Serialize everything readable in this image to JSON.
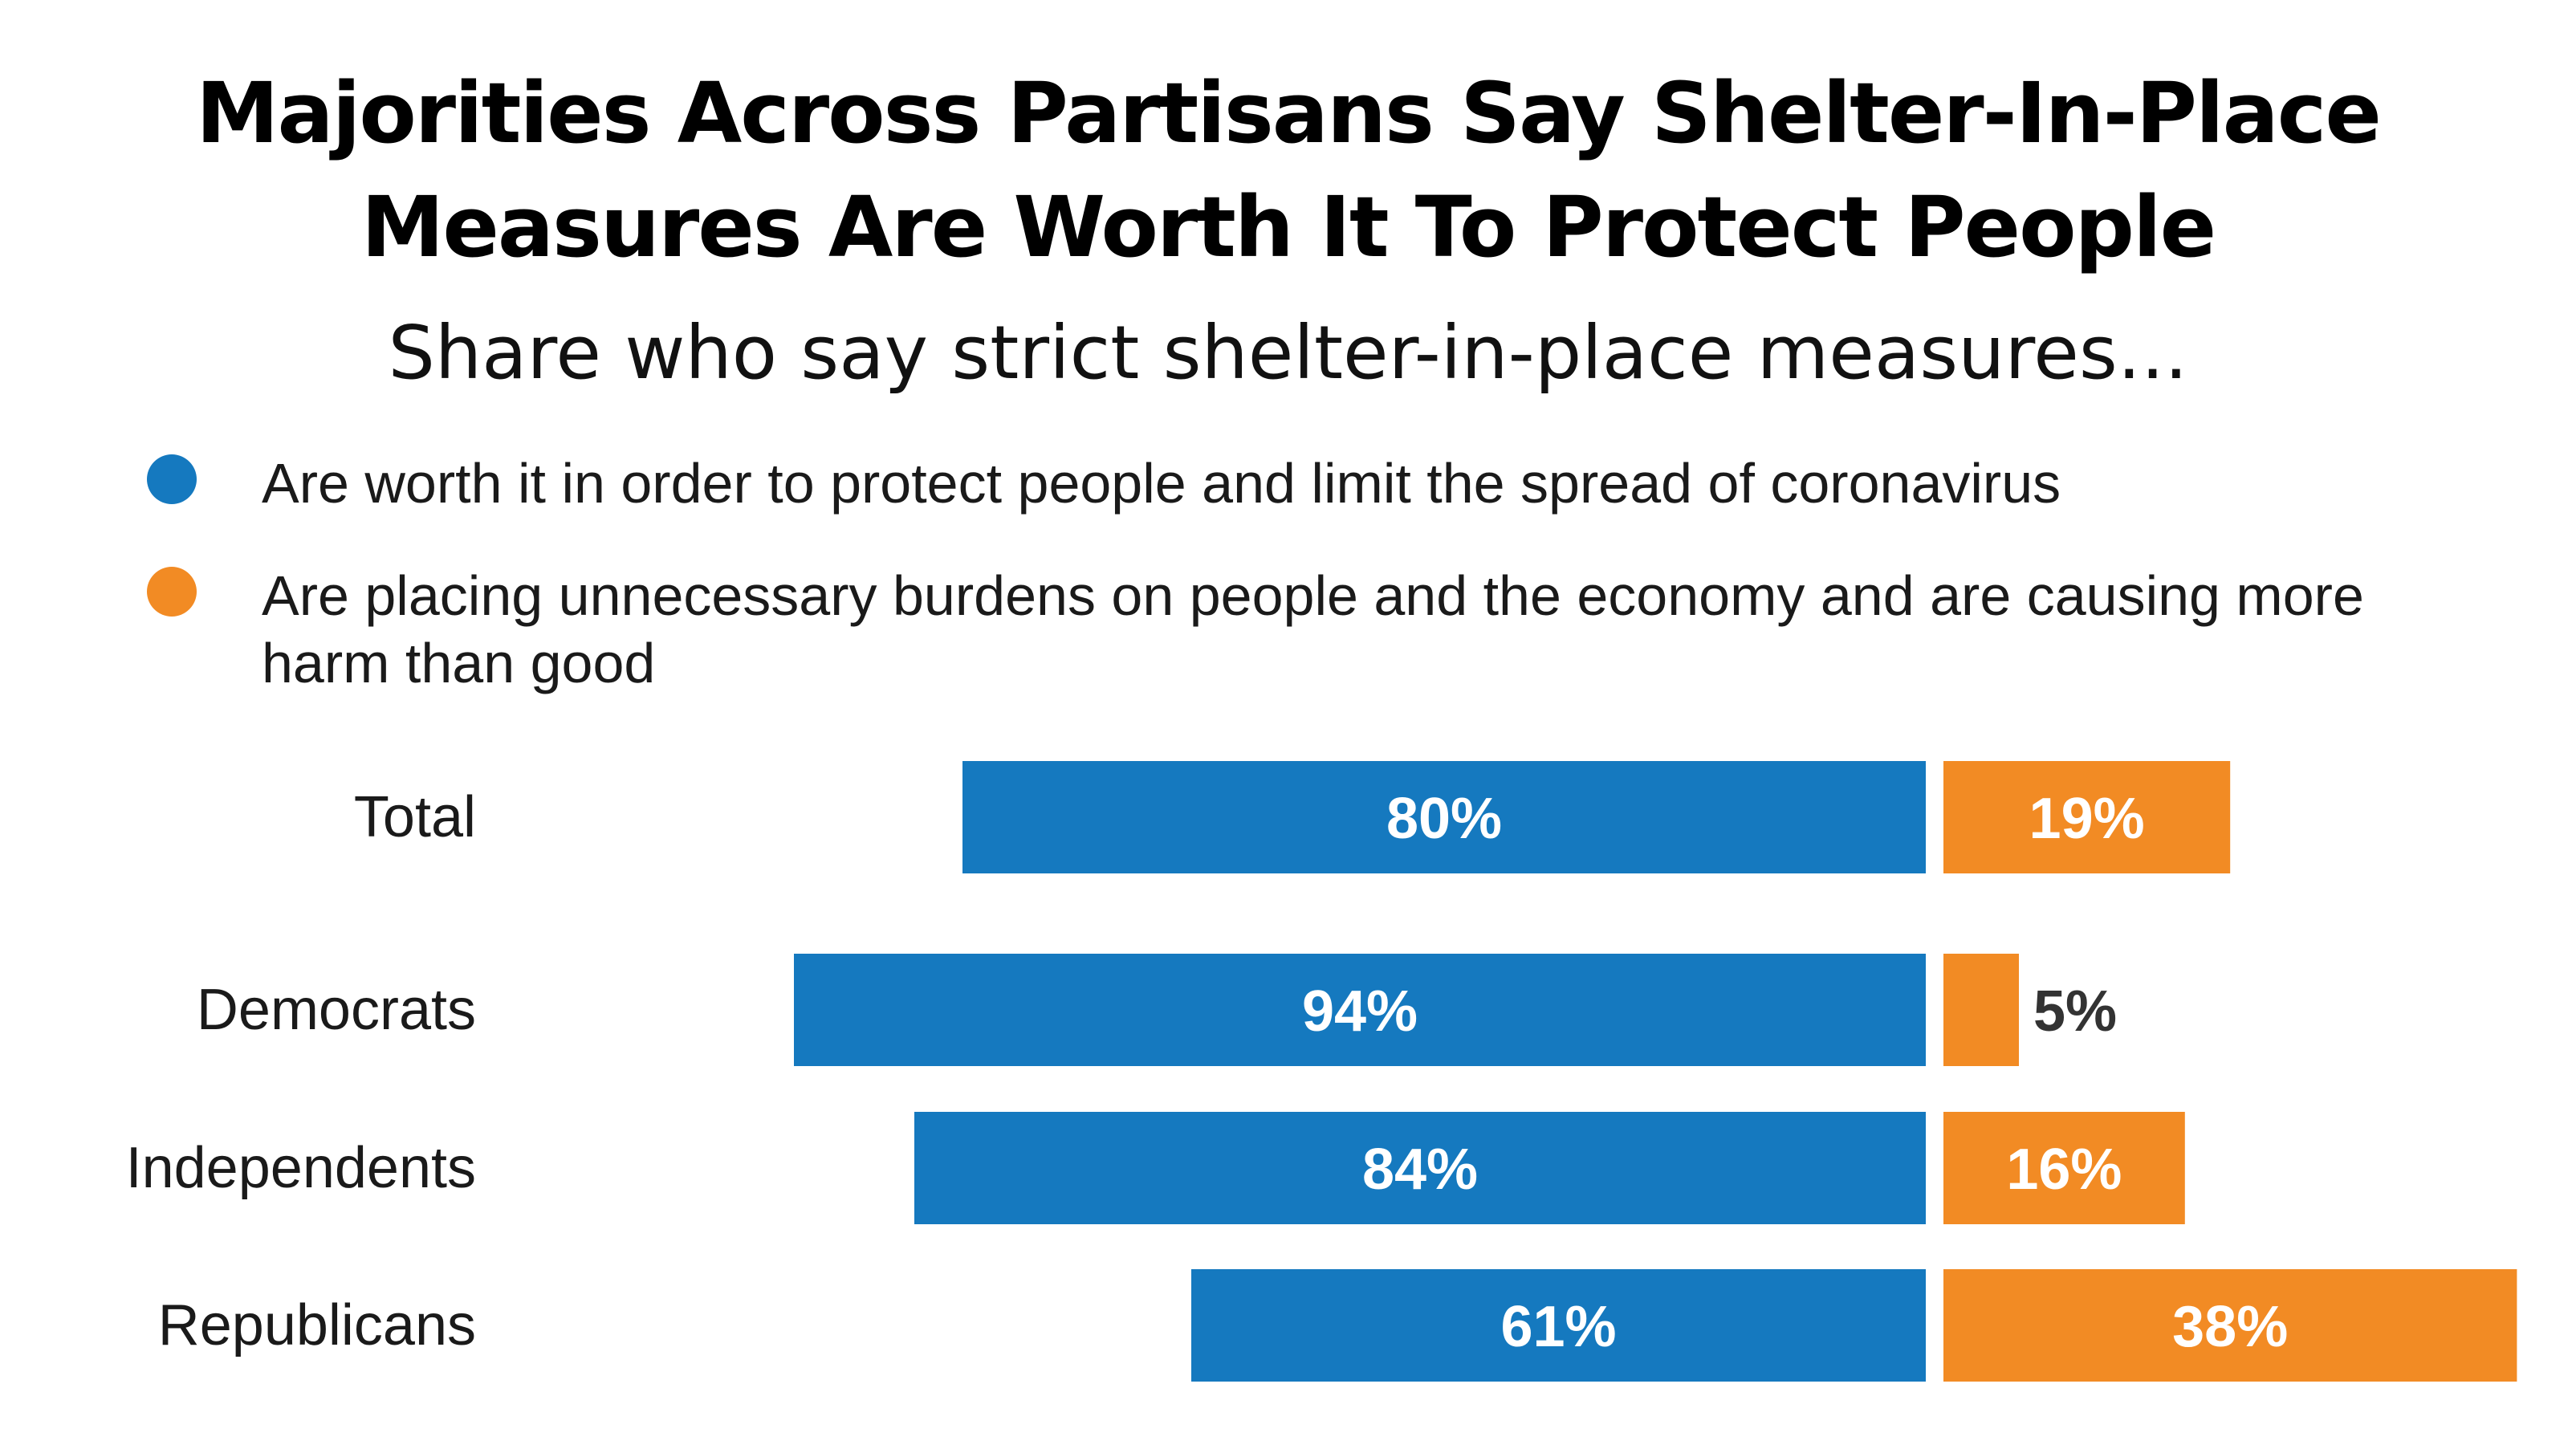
{
  "chart_data": {
    "type": "bar",
    "title": "Majorities Across Partisans Say Shelter-In-Place Measures Are Worth It To Protect People",
    "subtitle": "Share who say strict shelter-in-place measures...",
    "categories": [
      "Total",
      "Democrats",
      "Independents",
      "Republicans"
    ],
    "series": [
      {
        "name": "Are worth it in order to protect people and limit the spread of coronavirus",
        "color": "#1579bf",
        "values": [
          80,
          94,
          84,
          61
        ],
        "labels": [
          "80%",
          "94%",
          "84%",
          "61%"
        ]
      },
      {
        "name": "Are placing unnecessary burdens on people and the economy and are causing more harm than good",
        "color": "#f28b24",
        "values": [
          19,
          5,
          16,
          38
        ],
        "labels": [
          "19%",
          "5%",
          "16%",
          "38%"
        ]
      }
    ],
    "xlabel": "",
    "ylabel": "",
    "legend": "top",
    "grid": false
  }
}
